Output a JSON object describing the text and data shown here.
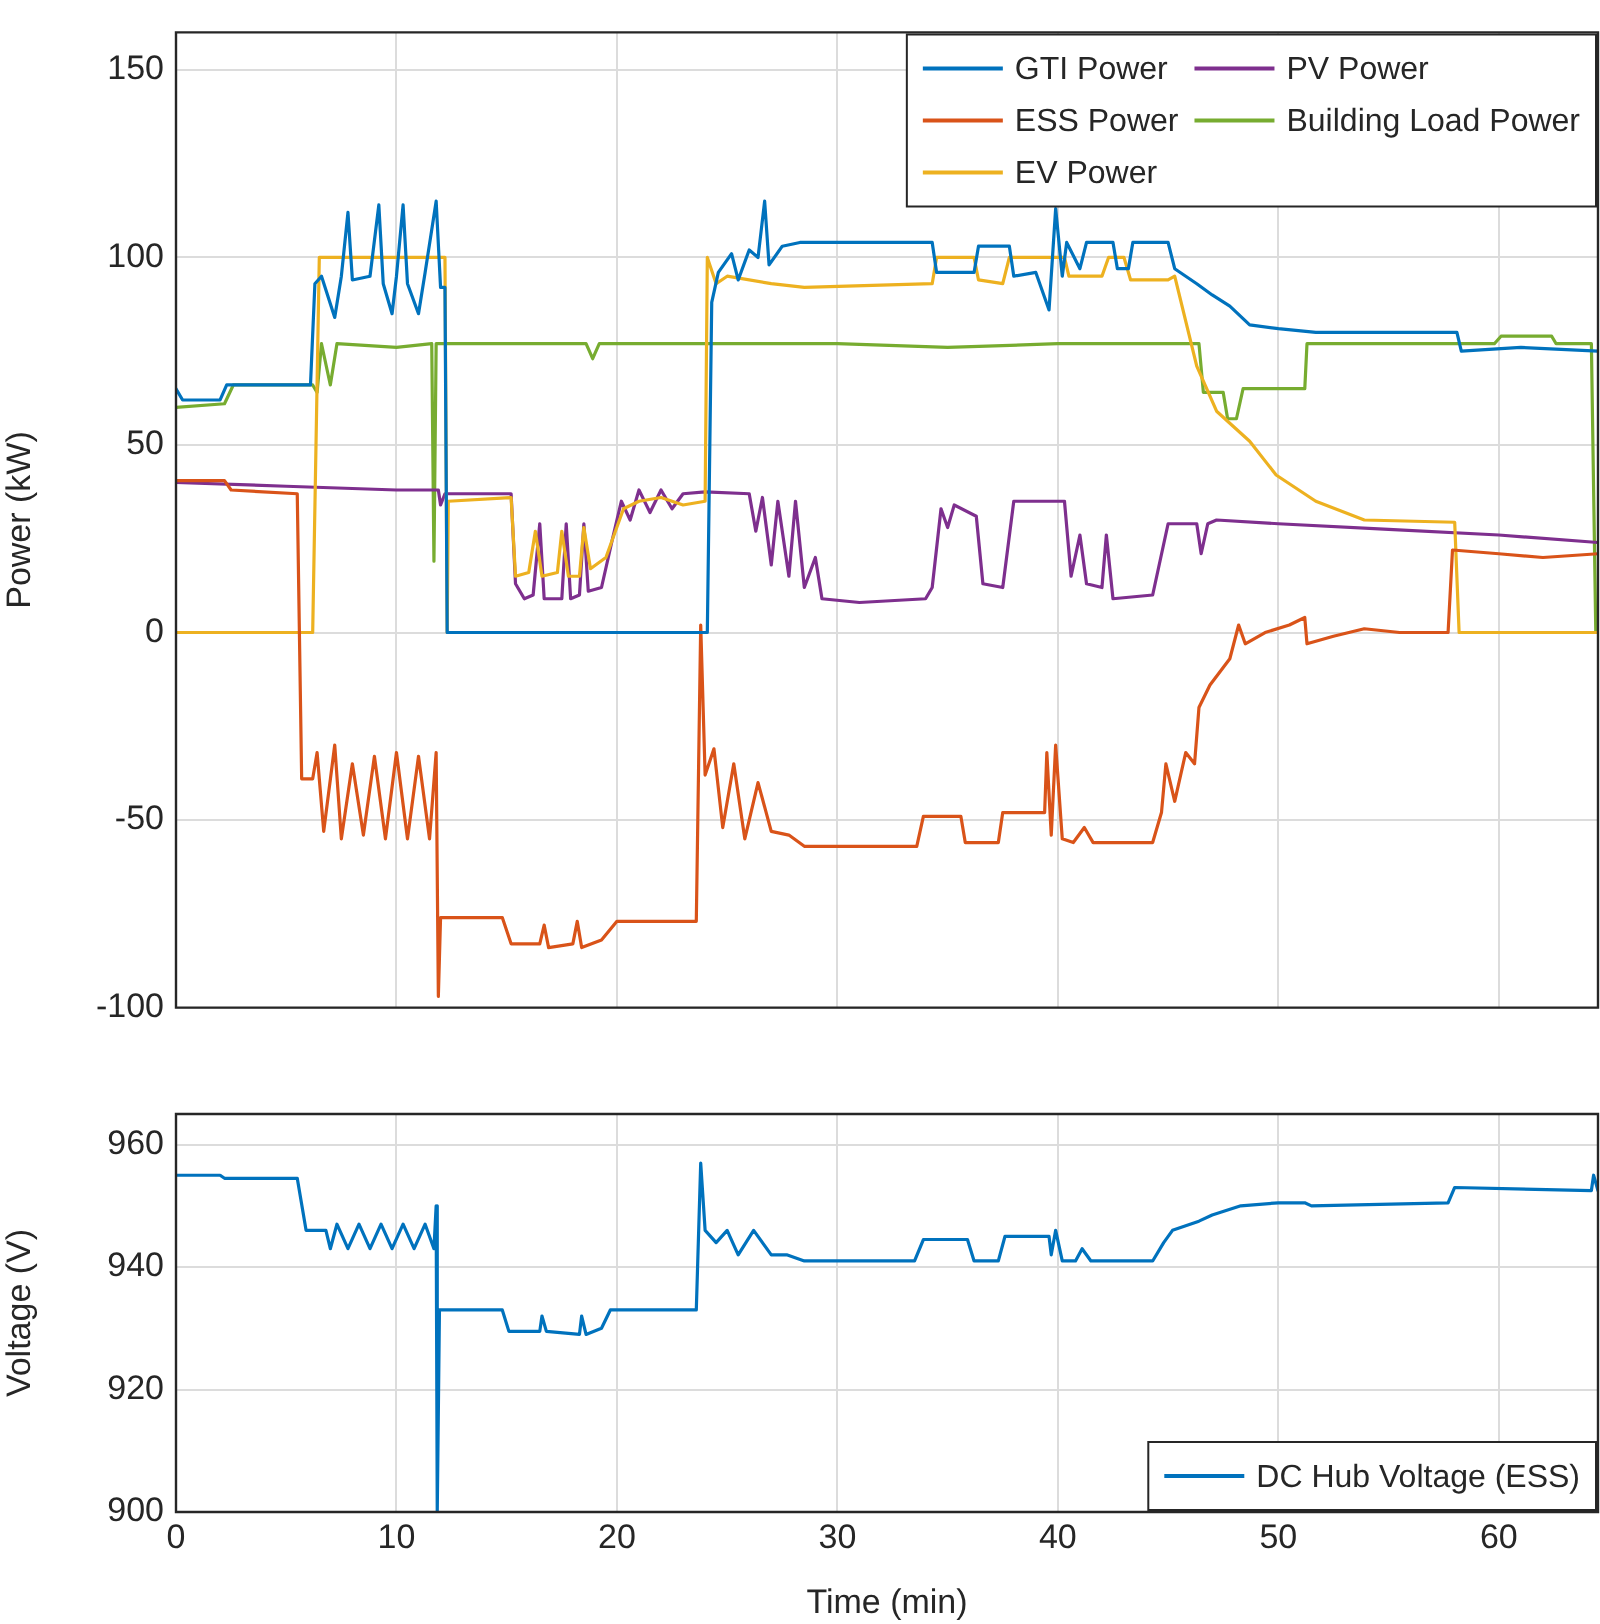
{
  "chart_data": [
    {
      "type": "line",
      "ylabel": "Power (kW)",
      "xlim": [
        0,
        64.5
      ],
      "xticks": [
        0,
        10,
        20,
        30,
        40,
        50,
        60
      ],
      "ylim": [
        -100,
        160
      ],
      "yticks": [
        -100,
        -50,
        0,
        50,
        100,
        150
      ],
      "grid": true,
      "legend": "top right",
      "tick_labels": "y",
      "series": [
        {
          "name": "GTI Power",
          "color": "#0072bd",
          "x": [
            0,
            0.3,
            2.0,
            2.3,
            6.1,
            6.3,
            6.6,
            7.2,
            7.5,
            7.8,
            8.0,
            8.8,
            9.2,
            9.4,
            9.8,
            10.0,
            10.3,
            10.5,
            11.0,
            11.3,
            11.8,
            12.0,
            12.2,
            12.3,
            24.1,
            24.3,
            24.6,
            25.2,
            25.5,
            26.0,
            26.4,
            26.7,
            26.9,
            27.5,
            28.3,
            34.3,
            34.5,
            36.2,
            36.4,
            37.8,
            38.0,
            39.0,
            39.6,
            39.9,
            40.2,
            40.4,
            41.0,
            41.3,
            42.5,
            42.7,
            43.2,
            43.4,
            45.0,
            45.3,
            46.3,
            47.0,
            47.8,
            48.7,
            50.0,
            51.7,
            55.0,
            58.1,
            58.3,
            61.0,
            64.5
          ],
          "values": [
            65,
            62,
            62,
            66,
            66,
            93,
            95,
            84,
            95,
            112,
            94,
            95,
            114,
            93,
            85,
            95,
            114,
            93,
            85,
            96,
            115,
            92,
            92,
            0,
            0,
            88,
            96,
            101,
            94,
            102,
            100,
            115,
            98,
            103,
            104,
            104,
            96,
            96,
            103,
            103,
            95,
            96,
            86,
            113,
            95,
            104,
            97,
            104,
            104,
            97,
            97,
            104,
            104,
            97,
            93,
            90,
            87,
            82,
            81,
            80,
            80,
            80,
            75,
            76,
            75
          ]
        },
        {
          "name": "ESS Power",
          "color": "#d95319",
          "x": [
            0,
            2.2,
            2.5,
            5.5,
            5.7,
            6.2,
            6.4,
            6.7,
            7.2,
            7.5,
            8.0,
            8.5,
            9.0,
            9.5,
            10.0,
            10.5,
            11.0,
            11.5,
            11.8,
            11.9,
            12.0,
            14.8,
            15.2,
            16.5,
            16.7,
            16.9,
            18.0,
            18.2,
            18.4,
            19.3,
            20.0,
            23.6,
            23.8,
            24.0,
            24.4,
            24.8,
            25.3,
            25.8,
            26.4,
            27.0,
            27.8,
            28.5,
            33.6,
            33.9,
            35.6,
            35.8,
            37.3,
            37.5,
            39.4,
            39.5,
            39.7,
            39.9,
            40.2,
            40.7,
            41.2,
            41.6,
            44.3,
            44.7,
            44.9,
            45.3,
            45.8,
            46.2,
            46.4,
            46.9,
            47.8,
            48.2,
            48.5,
            49.4,
            50.5,
            51.2,
            51.3,
            52.5,
            53.9,
            55.5,
            57.7,
            57.9,
            60,
            62,
            64.5
          ],
          "values": [
            40.5,
            40.5,
            38,
            37,
            -39,
            -39,
            -32,
            -53,
            -30,
            -55,
            -35,
            -54,
            -33,
            -55,
            -32,
            -55,
            -33,
            -55,
            -32,
            -97,
            -76,
            -76,
            -83,
            -83,
            -78,
            -84,
            -83,
            -77,
            -84,
            -82,
            -77,
            -77,
            2,
            -38,
            -31,
            -52,
            -35,
            -55,
            -40,
            -53,
            -54,
            -57,
            -57,
            -49,
            -49,
            -56,
            -56,
            -48,
            -48,
            -32,
            -54,
            -30,
            -55,
            -56,
            -52,
            -56,
            -56,
            -48,
            -35,
            -45,
            -32,
            -35,
            -20,
            -14,
            -7,
            2,
            -3,
            0,
            2,
            4,
            -3,
            -1,
            1,
            0,
            0,
            22,
            21,
            20,
            21
          ]
        },
        {
          "name": "EV Power",
          "color": "#edb120",
          "x": [
            0,
            6.2,
            6.5,
            12.2,
            12.3,
            12.35,
            15.2,
            15.4,
            16.0,
            16.3,
            16.6,
            17.3,
            17.5,
            17.8,
            18.3,
            18.5,
            18.8,
            19.5,
            20.3,
            21,
            22,
            23,
            24.0,
            24.1,
            24.5,
            25,
            27,
            28.5,
            34.3,
            34.5,
            36.2,
            36.4,
            37.5,
            37.8,
            40.3,
            40.5,
            42.0,
            42.3,
            43.0,
            43.3,
            45.0,
            45.3,
            46.3,
            47.2,
            48.7,
            49.9,
            51.7,
            53.9,
            58.0,
            58.2,
            64.5
          ],
          "values": [
            0,
            0,
            100,
            100,
            0,
            35,
            36,
            15,
            16,
            27,
            15,
            16,
            27,
            15,
            15,
            28,
            17,
            20,
            33,
            35,
            36,
            34,
            35,
            100,
            93,
            95,
            93,
            92,
            93,
            100,
            100,
            94,
            93,
            100,
            100,
            95,
            95,
            100,
            100,
            94,
            94,
            95,
            71,
            59,
            51,
            42,
            35,
            30,
            29.4,
            0,
            0
          ]
        },
        {
          "name": "PV Power",
          "color": "#7e2f8e",
          "x": [
            0,
            5,
            10,
            11.9,
            12.0,
            12.2,
            15.2,
            15.4,
            15.8,
            16.2,
            16.5,
            16.7,
            17.5,
            17.7,
            17.9,
            18.3,
            18.5,
            18.7,
            19.3,
            19.8,
            20.2,
            20.6,
            21.0,
            21.5,
            22,
            22.5,
            23,
            24,
            26,
            26.3,
            26.6,
            27,
            27.3,
            27.8,
            28.1,
            28.5,
            29,
            29.3,
            31,
            34,
            34.3,
            34.7,
            35,
            35.3,
            36.3,
            36.6,
            37.5,
            38,
            40.3,
            40.6,
            41,
            41.3,
            42,
            42.2,
            42.5,
            44.3,
            45.0,
            46.3,
            46.5,
            46.8,
            47.2,
            50,
            55,
            60,
            64.5
          ],
          "values": [
            40,
            39,
            38,
            38,
            34,
            37,
            37,
            13,
            9,
            10,
            29,
            9,
            9,
            29,
            9,
            10,
            29,
            11,
            12,
            25,
            35,
            30,
            38,
            32,
            38,
            33,
            37,
            37.5,
            37,
            27,
            36,
            18,
            35,
            15,
            35,
            12,
            20,
            9,
            8,
            9,
            12,
            33,
            28,
            34,
            31,
            13,
            12,
            35,
            35,
            15,
            26,
            13,
            12,
            26,
            9,
            10,
            29,
            29,
            21,
            29,
            30,
            29,
            27.5,
            26,
            24
          ]
        },
        {
          "name": "Building Load Power",
          "color": "#77ac30",
          "x": [
            0,
            2.2,
            2.6,
            6.2,
            6.4,
            6.6,
            7.0,
            7.3,
            10,
            11.6,
            11.7,
            11.8,
            15,
            18.6,
            18.9,
            19.2,
            25,
            30,
            35,
            40,
            46.4,
            46.6,
            47.5,
            47.7,
            48.1,
            48.4,
            51.2,
            51.3,
            56,
            59.8,
            60.1,
            62.4,
            62.6,
            64.2,
            64.4
          ],
          "values": [
            60,
            61,
            66,
            66,
            64,
            77,
            66,
            77,
            76,
            77,
            19,
            77,
            77,
            77,
            73,
            77,
            77,
            77,
            76,
            77,
            77,
            64,
            64,
            57,
            57,
            65,
            65,
            77,
            77,
            77,
            79,
            79,
            77,
            77,
            0
          ]
        }
      ]
    },
    {
      "type": "line",
      "xlabel": "Time (min)",
      "ylabel": "Voltage (V)",
      "xlim": [
        0,
        64.5
      ],
      "xticks": [
        0,
        10,
        20,
        30,
        40,
        50,
        60
      ],
      "ylim": [
        900,
        965
      ],
      "yticks": [
        900,
        920,
        940,
        960
      ],
      "grid": true,
      "legend": "bottom right",
      "series": [
        {
          "name": "DC Hub Voltage (ESS)",
          "color": "#0072bd",
          "x": [
            0,
            2,
            2.2,
            5.5,
            5.9,
            6.8,
            7.0,
            7.3,
            7.8,
            8.3,
            8.8,
            9.3,
            9.8,
            10.3,
            10.8,
            11.3,
            11.7,
            11.8,
            11.85,
            11.95,
            14.8,
            15.1,
            16.5,
            16.6,
            16.8,
            18.3,
            18.4,
            18.6,
            19.3,
            19.7,
            23.6,
            23.8,
            24.0,
            24.5,
            25,
            25.5,
            26.2,
            27,
            27.7,
            28.5,
            33.5,
            33.9,
            35.9,
            36.2,
            37.3,
            37.6,
            39.6,
            39.7,
            39.9,
            40.2,
            40.8,
            41.1,
            41.5,
            44.3,
            44.8,
            45.2,
            46.4,
            47,
            48.3,
            50,
            51.2,
            51.5,
            57.7,
            58.0,
            64.2,
            64.3,
            64.5
          ],
          "values": [
            955,
            955,
            954.5,
            954.5,
            946,
            946,
            943,
            947,
            943,
            947,
            943,
            947,
            943,
            947,
            943,
            947,
            943,
            950,
            900,
            933,
            933,
            929.5,
            929.5,
            932,
            929.5,
            929,
            932,
            929,
            930,
            933,
            933,
            957,
            946,
            944,
            946,
            942,
            946,
            942,
            942,
            941,
            941,
            944.5,
            944.5,
            941,
            941,
            945,
            945,
            942,
            946,
            941,
            941,
            943,
            941,
            941,
            944,
            946,
            947.5,
            948.5,
            950,
            950.5,
            950.5,
            950,
            950.5,
            953,
            952.5,
            955,
            952.5
          ]
        }
      ]
    }
  ]
}
